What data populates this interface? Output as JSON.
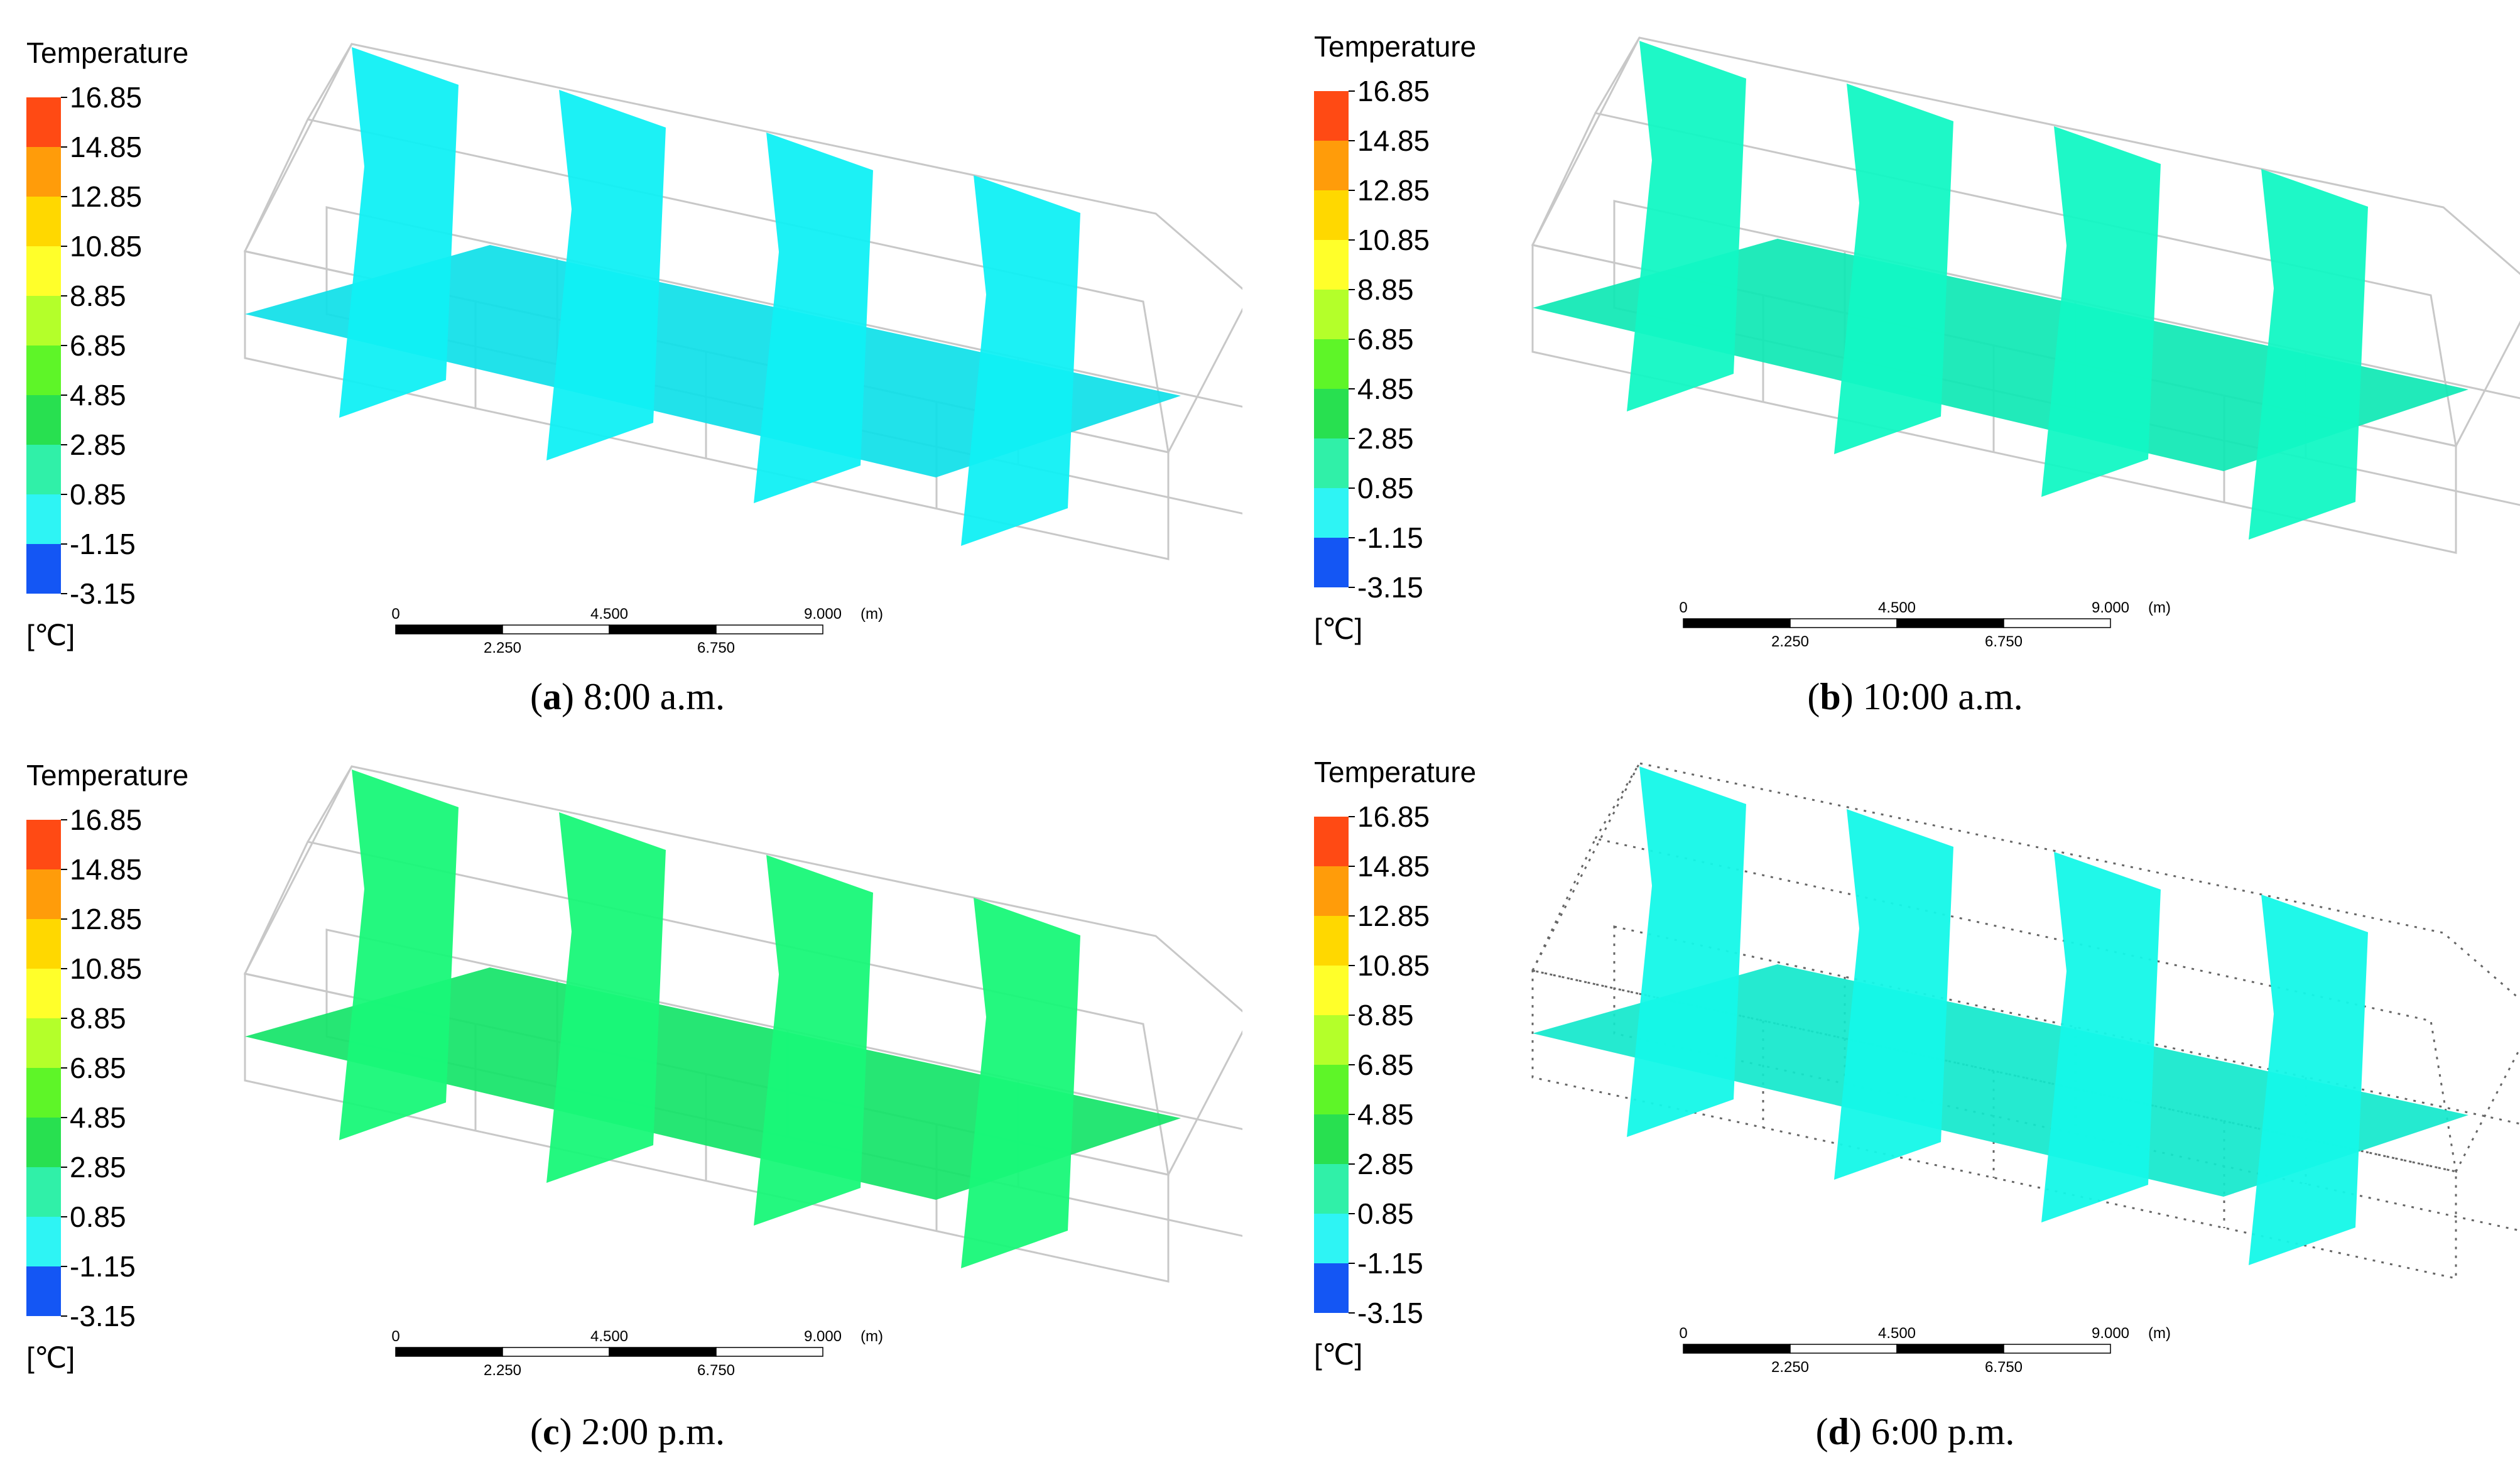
{
  "legend": {
    "title": "Temperature",
    "unit": "[℃]",
    "ticks": [
      "16.85",
      "14.85",
      "12.85",
      "10.85",
      "8.85",
      "6.85",
      "4.85",
      "2.85",
      "0.85",
      "-1.15",
      "-3.15"
    ],
    "colors": [
      "#ff4a14",
      "#ff9c0a",
      "#ffd800",
      "#ffff2a",
      "#b4ff2a",
      "#5ef528",
      "#28e050",
      "#30f0a8",
      "#2ef4f4",
      "#18a8f4",
      "#1456f4"
    ]
  },
  "scale_bar": {
    "top_labels": [
      "0",
      "4.500",
      "9.000",
      "(m)"
    ],
    "bottom_labels": [
      "2.250",
      "6.750"
    ]
  },
  "panels": [
    {
      "letter": "a",
      "caption": "8:00 a.m.",
      "plane_color": "#10f0f4",
      "floor_color": "#0ee0e8",
      "dotted": false
    },
    {
      "letter": "b",
      "caption": "10:00 a.m.",
      "plane_color": "#12f8c4",
      "floor_color": "#0ee8b4",
      "dotted": false
    },
    {
      "letter": "c",
      "caption": "2:00 p.m.",
      "plane_color": "#18f878",
      "floor_color": "#14e468",
      "dotted": false
    },
    {
      "letter": "d",
      "caption": "6:00 p.m.",
      "plane_color": "#14f8e8",
      "floor_color": "#12e8cc",
      "dotted": true
    }
  ]
}
